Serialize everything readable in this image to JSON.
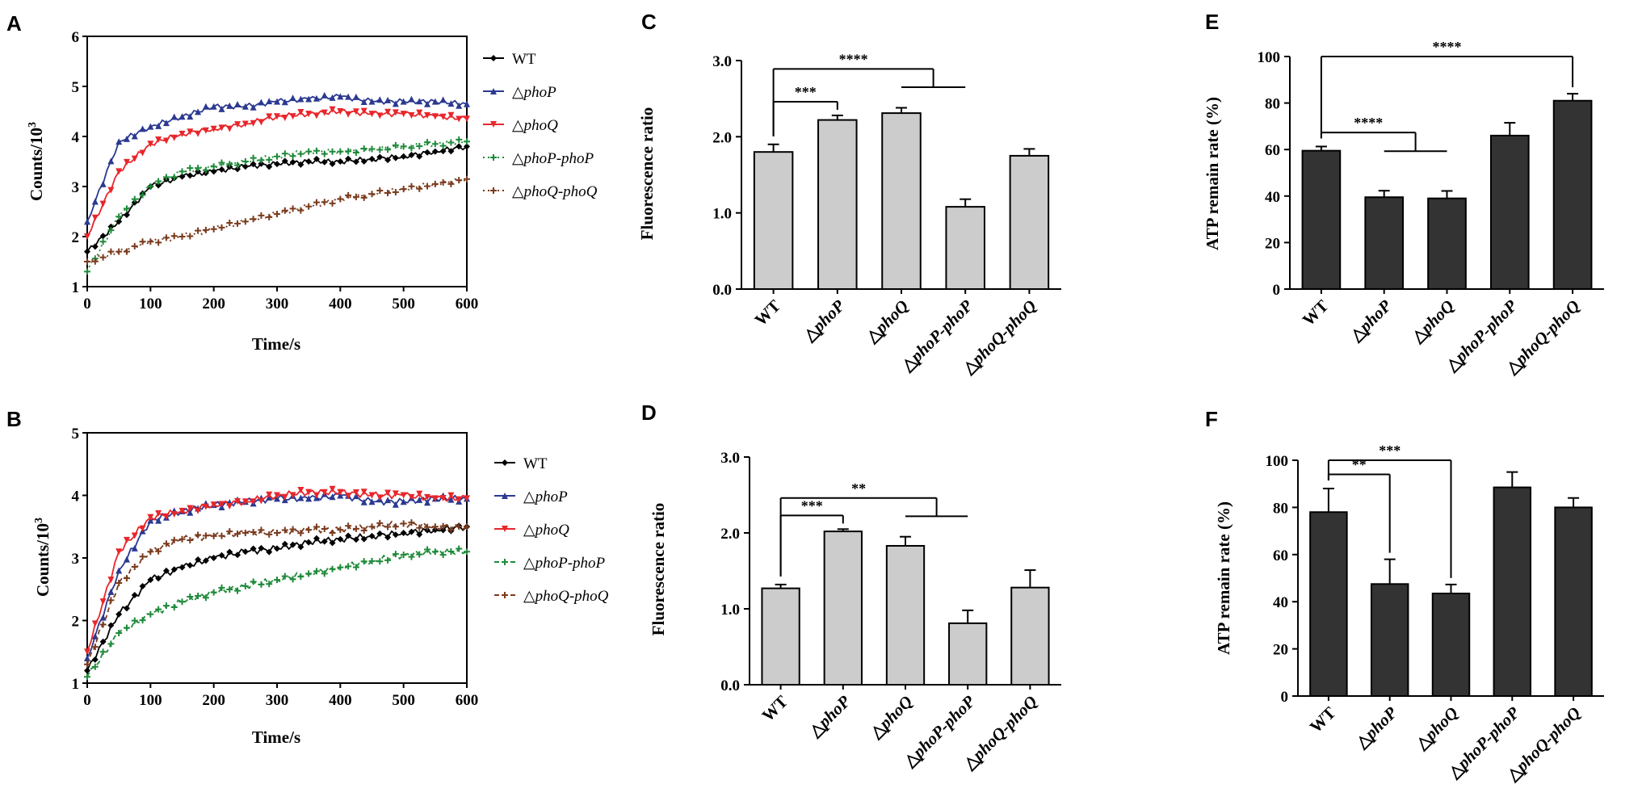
{
  "chart_data": [
    {
      "panel": "A",
      "type": "line",
      "xlabel": "Time/s",
      "ylabel": "Counts/10",
      "ylabel_sup": "3",
      "xlim": [
        0,
        600
      ],
      "ylim": [
        1,
        6
      ],
      "xticks": [
        "0",
        "100",
        "200",
        "300",
        "400",
        "500",
        "600"
      ],
      "yticks": [
        "1",
        "2",
        "3",
        "4",
        "5",
        "6"
      ],
      "series": [
        {
          "name": "WT",
          "prefix": "",
          "color": "#000000",
          "marker": "diamond",
          "style": "solid",
          "x": [
            0,
            50,
            100,
            150,
            200,
            250,
            300,
            350,
            400,
            450,
            500,
            550,
            600
          ],
          "values": [
            1.7,
            2.3,
            3.0,
            3.2,
            3.3,
            3.4,
            3.45,
            3.5,
            3.5,
            3.55,
            3.6,
            3.7,
            3.8
          ]
        },
        {
          "name": "phoP",
          "prefix": "△",
          "color": "#2b3990",
          "marker": "triangle-up",
          "style": "solid",
          "x": [
            0,
            50,
            100,
            150,
            200,
            250,
            300,
            350,
            400,
            450,
            500,
            550,
            600
          ],
          "values": [
            2.3,
            3.9,
            4.2,
            4.4,
            4.6,
            4.6,
            4.7,
            4.75,
            4.8,
            4.7,
            4.7,
            4.7,
            4.65
          ]
        },
        {
          "name": "phoQ",
          "prefix": "△",
          "color": "#e8262b",
          "marker": "triangle-down",
          "style": "solid",
          "x": [
            0,
            50,
            100,
            150,
            200,
            250,
            300,
            350,
            400,
            450,
            500,
            550,
            600
          ],
          "values": [
            2.0,
            3.3,
            3.85,
            4.05,
            4.15,
            4.25,
            4.4,
            4.45,
            4.5,
            4.45,
            4.45,
            4.4,
            4.35
          ]
        },
        {
          "name": "phoP-phoP",
          "prefix": "△",
          "color": "#1f8a3a",
          "marker": "plus",
          "style": "dotted",
          "x": [
            0,
            50,
            100,
            150,
            200,
            250,
            300,
            350,
            400,
            450,
            500,
            550,
            600
          ],
          "values": [
            1.3,
            2.4,
            3.0,
            3.3,
            3.4,
            3.5,
            3.6,
            3.7,
            3.7,
            3.75,
            3.8,
            3.85,
            3.9
          ]
        },
        {
          "name": "phoQ-phoQ",
          "prefix": "△",
          "color": "#7a3b1e",
          "marker": "plus",
          "style": "dotted",
          "x": [
            0,
            50,
            100,
            150,
            200,
            250,
            300,
            350,
            400,
            450,
            500,
            550,
            600
          ],
          "values": [
            1.5,
            1.7,
            1.9,
            2.0,
            2.15,
            2.3,
            2.45,
            2.6,
            2.75,
            2.85,
            2.95,
            3.05,
            3.15
          ]
        }
      ]
    },
    {
      "panel": "B",
      "type": "line",
      "xlabel": "Time/s",
      "ylabel": "Counts/10",
      "ylabel_sup": "3",
      "xlim": [
        0,
        600
      ],
      "ylim": [
        1,
        5
      ],
      "xticks": [
        "0",
        "100",
        "200",
        "300",
        "400",
        "500",
        "600"
      ],
      "yticks": [
        "1",
        "2",
        "3",
        "4",
        "5"
      ],
      "series": [
        {
          "name": "WT",
          "prefix": "",
          "color": "#000000",
          "marker": "diamond",
          "style": "solid",
          "x": [
            0,
            50,
            100,
            150,
            200,
            250,
            300,
            350,
            400,
            450,
            500,
            550,
            600
          ],
          "values": [
            1.2,
            2.1,
            2.65,
            2.85,
            3.0,
            3.1,
            3.15,
            3.25,
            3.3,
            3.35,
            3.4,
            3.45,
            3.5
          ]
        },
        {
          "name": "phoP",
          "prefix": "△",
          "color": "#2b3990",
          "marker": "triangle-up",
          "style": "solid",
          "x": [
            0,
            50,
            100,
            150,
            200,
            250,
            300,
            350,
            400,
            450,
            500,
            550,
            600
          ],
          "values": [
            1.4,
            2.8,
            3.6,
            3.75,
            3.85,
            3.9,
            3.95,
            3.95,
            4.0,
            3.9,
            3.9,
            3.95,
            3.95
          ]
        },
        {
          "name": "phoQ",
          "prefix": "△",
          "color": "#e8262b",
          "marker": "triangle-down",
          "style": "solid",
          "x": [
            0,
            50,
            100,
            150,
            200,
            250,
            300,
            350,
            400,
            450,
            500,
            550,
            600
          ],
          "values": [
            1.5,
            3.1,
            3.65,
            3.75,
            3.85,
            3.9,
            4.0,
            4.05,
            4.05,
            4.0,
            4.0,
            3.95,
            3.95
          ]
        },
        {
          "name": "phoP-phoP",
          "prefix": "△",
          "color": "#1f8a3a",
          "marker": "plus",
          "style": "dashed",
          "x": [
            0,
            50,
            100,
            150,
            200,
            250,
            300,
            350,
            400,
            450,
            500,
            550,
            600
          ],
          "values": [
            1.1,
            1.8,
            2.1,
            2.3,
            2.45,
            2.55,
            2.65,
            2.75,
            2.85,
            2.95,
            3.05,
            3.1,
            3.1
          ]
        },
        {
          "name": "phoQ-phoQ",
          "prefix": "△",
          "color": "#7a3b1e",
          "marker": "plus",
          "style": "dashed",
          "x": [
            0,
            50,
            100,
            150,
            200,
            250,
            300,
            350,
            400,
            450,
            500,
            550,
            600
          ],
          "values": [
            1.3,
            2.6,
            3.1,
            3.3,
            3.35,
            3.4,
            3.4,
            3.45,
            3.45,
            3.5,
            3.55,
            3.5,
            3.5
          ]
        }
      ]
    },
    {
      "panel": "C",
      "type": "bar",
      "ylabel": "Fluorescence  ratio",
      "ylim": [
        0,
        3
      ],
      "yticks": [
        "0.0",
        "1.0",
        "2.0",
        "3.0"
      ],
      "bar_color": "#cccccc",
      "categories": [
        {
          "prefix": "",
          "name": "WT"
        },
        {
          "prefix": "△",
          "name": "phoP"
        },
        {
          "prefix": "△",
          "name": "phoQ"
        },
        {
          "prefix": "△",
          "name": "phoP-phoP"
        },
        {
          "prefix": "△",
          "name": "phoQ-phoQ"
        }
      ],
      "values": [
        1.8,
        2.22,
        2.31,
        1.08,
        1.75
      ],
      "errors": [
        0.1,
        0.06,
        0.07,
        0.1,
        0.09
      ],
      "significance": [
        {
          "label": "***",
          "from": 0,
          "to": [
            1
          ]
        },
        {
          "label": "****",
          "from": 0,
          "to": [
            2,
            3
          ]
        }
      ]
    },
    {
      "panel": "D",
      "type": "bar",
      "ylabel": "Fluorescence  ratio",
      "ylim": [
        0,
        3
      ],
      "yticks": [
        "0.0",
        "1.0",
        "2.0",
        "3.0"
      ],
      "bar_color": "#cccccc",
      "categories": [
        {
          "prefix": "",
          "name": "WT"
        },
        {
          "prefix": "△",
          "name": "phoP"
        },
        {
          "prefix": "△",
          "name": "phoQ"
        },
        {
          "prefix": "△",
          "name": "phoP-phoP"
        },
        {
          "prefix": "△",
          "name": "phoQ-phoQ"
        }
      ],
      "values": [
        1.27,
        2.02,
        1.83,
        0.81,
        1.28
      ],
      "errors": [
        0.05,
        0.03,
        0.12,
        0.17,
        0.23
      ],
      "significance": [
        {
          "label": "***",
          "from": 0,
          "to": [
            1
          ]
        },
        {
          "label": "**",
          "from": 0,
          "to": [
            2,
            3
          ]
        }
      ]
    },
    {
      "panel": "E",
      "type": "bar",
      "ylabel": "ATP remain rate (%)",
      "ylim": [
        0,
        100
      ],
      "yticks": [
        "0",
        "20",
        "40",
        "60",
        "80",
        "100"
      ],
      "bar_color": "#333333",
      "categories": [
        {
          "prefix": "",
          "name": "WT"
        },
        {
          "prefix": "△",
          "name": "phoP"
        },
        {
          "prefix": "△",
          "name": "phoQ"
        },
        {
          "prefix": "△",
          "name": "phoP-phoP"
        },
        {
          "prefix": "△",
          "name": "phoQ-phoQ"
        }
      ],
      "values": [
        59.5,
        39.5,
        39.0,
        66.0,
        81.0
      ],
      "errors": [
        1.8,
        2.8,
        3.2,
        5.5,
        3.0
      ],
      "significance": [
        {
          "label": "****",
          "from": 0,
          "to": [
            1,
            2
          ]
        },
        {
          "label": "****",
          "from": 0,
          "to": [
            4
          ]
        }
      ]
    },
    {
      "panel": "F",
      "type": "bar",
      "ylabel": "ATP remain rate (%)",
      "ylim": [
        0,
        100
      ],
      "yticks": [
        "0",
        "20",
        "40",
        "60",
        "80",
        "100"
      ],
      "bar_color": "#333333",
      "categories": [
        {
          "prefix": "",
          "name": "WT"
        },
        {
          "prefix": "△",
          "name": "phoP"
        },
        {
          "prefix": "△",
          "name": "phoQ"
        },
        {
          "prefix": "△",
          "name": "phoP-phoP"
        },
        {
          "prefix": "△",
          "name": "phoQ-phoQ"
        }
      ],
      "values": [
        78.0,
        47.5,
        43.5,
        88.5,
        80.0
      ],
      "errors": [
        10.0,
        10.5,
        3.8,
        6.5,
        4.0
      ],
      "significance": [
        {
          "label": "**",
          "from": 0,
          "to": [
            1
          ]
        },
        {
          "label": "***",
          "from": 0,
          "to": [
            2
          ]
        }
      ]
    }
  ]
}
